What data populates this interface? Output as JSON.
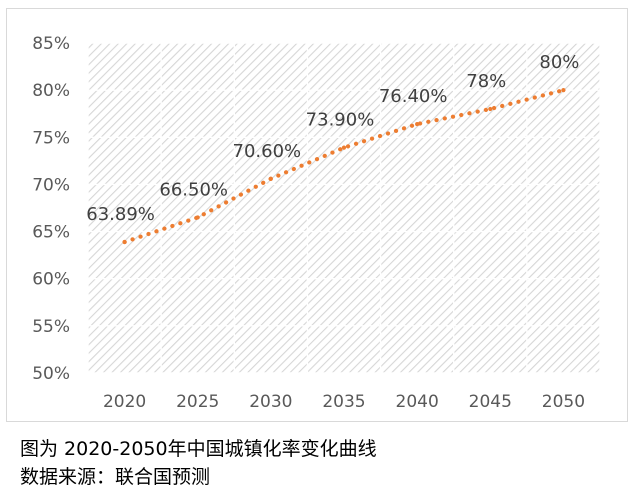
{
  "caption": {
    "title": "图为  2020-2050年中国城镇化率变化曲线",
    "source": "数据来源：联合国预测"
  },
  "chart_data": {
    "type": "line",
    "x": [
      "2020",
      "2025",
      "2030",
      "2035",
      "2040",
      "2045",
      "2050"
    ],
    "series": [
      {
        "values": [
          63.89,
          66.5,
          70.6,
          73.9,
          76.4,
          78,
          80
        ],
        "data_labels": [
          "63.89%",
          "66.50%",
          "70.60%",
          "73.90%",
          "76.40%",
          "78%",
          "80%"
        ],
        "color": "#ED7D31",
        "line_style": "dotted"
      }
    ],
    "y_ticks": [
      "50%",
      "55%",
      "60%",
      "65%",
      "70%",
      "75%",
      "80%",
      "85%"
    ],
    "ylim": [
      50,
      85
    ],
    "grid": true,
    "plot_fill": "diagonal-hatch",
    "legend": "none"
  }
}
